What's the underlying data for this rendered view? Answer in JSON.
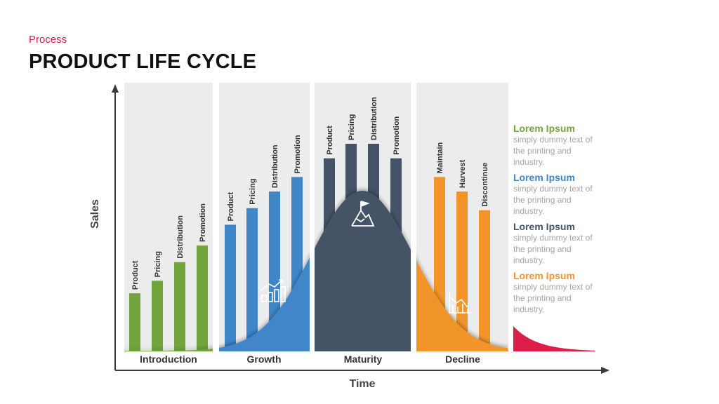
{
  "header": {
    "eyebrow": "Process",
    "title": "PRODUCT LIFE CYCLE"
  },
  "axes": {
    "y_label": "Sales",
    "x_label": "Time"
  },
  "colors": {
    "introduction": "#72a43e",
    "growth": "#3f86c8",
    "maturity": "#455366",
    "decline": "#f1952b",
    "tail": "#dc1f48",
    "panel_bg": "#ececec"
  },
  "stages": [
    {
      "name": "Introduction",
      "icon": "",
      "bars": [
        {
          "label": "Product",
          "level": 0.28
        },
        {
          "label": "Pricing",
          "level": 0.34
        },
        {
          "label": "Distribution",
          "level": 0.43
        },
        {
          "label": "Promotion",
          "level": 0.51
        }
      ]
    },
    {
      "name": "Growth",
      "icon": "growth-chart-icon",
      "bars": [
        {
          "label": "Product",
          "level": 0.61
        },
        {
          "label": "Pricing",
          "level": 0.69
        },
        {
          "label": "Distribution",
          "level": 0.77
        },
        {
          "label": "Promotion",
          "level": 0.84
        }
      ]
    },
    {
      "name": "Maturity",
      "icon": "mountain-flag-icon",
      "bars": [
        {
          "label": "Product",
          "level": 0.93
        },
        {
          "label": "Pricing",
          "level": 1.0
        },
        {
          "label": "Distribution",
          "level": 1.0
        },
        {
          "label": "Promotion",
          "level": 0.93
        }
      ]
    },
    {
      "name": "Decline",
      "icon": "declining-chart-icon",
      "bars": [
        {
          "label": "Maintain",
          "level": 0.84
        },
        {
          "label": "Harvest",
          "level": 0.77
        },
        {
          "label": "Discontinue",
          "level": 0.68
        }
      ]
    }
  ],
  "notes": [
    {
      "title": "Lorem Ipsum",
      "color": "#72a43e",
      "body": [
        "simply dummy text of",
        "the printing and",
        "industry."
      ]
    },
    {
      "title": "Lorem Ipsum",
      "color": "#3f86c8",
      "body": [
        "simply dummy text of",
        "the printing and",
        "industry."
      ]
    },
    {
      "title": "Lorem Ipsum",
      "color": "#455366",
      "body": [
        "simply dummy text of",
        "the printing and",
        "industry."
      ]
    },
    {
      "title": "Lorem Ipsum",
      "color": "#f1952b",
      "body": [
        "simply dummy text of",
        "the printing and",
        "industry."
      ]
    }
  ]
}
